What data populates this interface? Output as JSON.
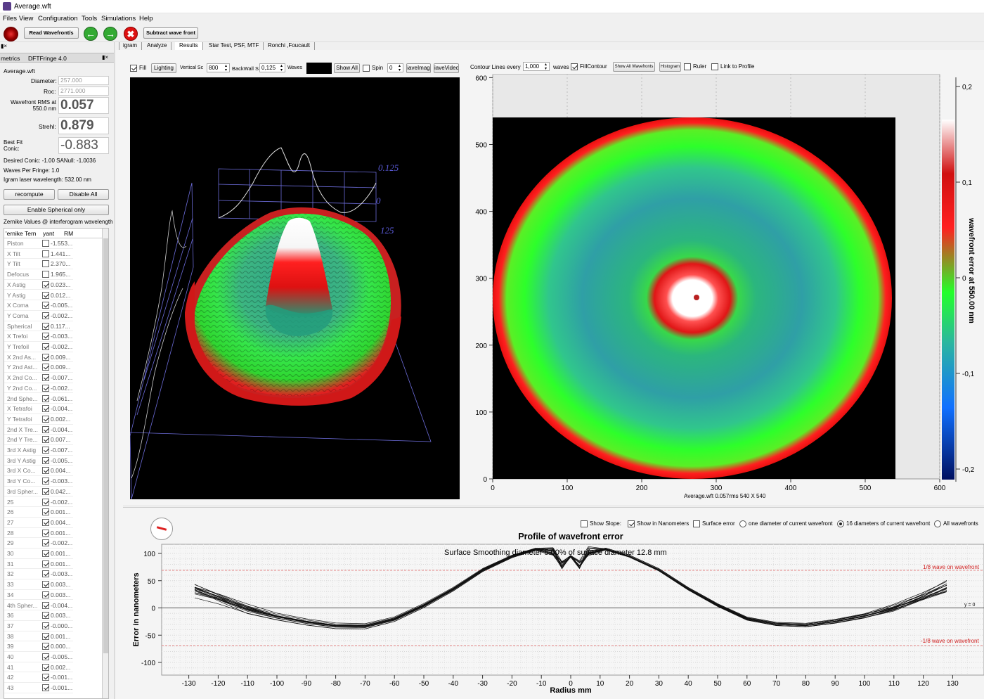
{
  "window_title": "Average.wft",
  "menu": [
    "Files",
    "View",
    "Configuration",
    "Tools",
    "Simulations",
    "Help"
  ],
  "toolbar": {
    "read_label": "Read Wavefront/s",
    "subtract_label": "Subtract wave front"
  },
  "tabs": [
    "igram",
    "Analyze",
    "Results",
    "Star Test, PSF, MTF",
    "Ronchi ,Foucault"
  ],
  "left_panel": {
    "dock_title": "metrics",
    "dock_title2": "DFTFringe 4.0",
    "file": "Average.wft",
    "diameter_label": "Diameter:",
    "diameter": "257.000",
    "roc_label": "Roc:",
    "roc": "2771.000",
    "rms_label": "Wavefront RMS at 550.0 nm",
    "rms": "0.057",
    "strehl_label": "Strehl:",
    "strehl": "0.879",
    "bestfit_label": "Best Fit Conic:",
    "bestfit": "-0.883",
    "desired": "Desired Conic:  -1.00 SANull: -1.0036",
    "waves_per_fringe": "Waves Per Fringe: 1.0",
    "laser": "Igram laser wavelength: 532.00 nm",
    "recompute": "recompute",
    "disable_all": "Disable All",
    "enable_spherical": "Enable Spherical only",
    "zernike_header": "Zernike Values @ interferogram wavelength",
    "col_term": "'ernike Tern",
    "col_variant": "yant",
    "col_rm": "RM",
    "rows": [
      {
        "name": "Piston",
        "on": false,
        "val": "-1.553..."
      },
      {
        "name": "X Tilt",
        "on": false,
        "val": "1.441..."
      },
      {
        "name": "Y Tilt",
        "on": false,
        "val": "2.370..."
      },
      {
        "name": "Defocus",
        "on": false,
        "val": "1.965..."
      },
      {
        "name": "X Astig",
        "on": true,
        "val": "0.023..."
      },
      {
        "name": "Y Astig",
        "on": true,
        "val": "0.012..."
      },
      {
        "name": "X Coma",
        "on": true,
        "val": "-0.005..."
      },
      {
        "name": "Y Coma",
        "on": true,
        "val": "-0.002..."
      },
      {
        "name": "Spherical",
        "on": true,
        "val": "0.117..."
      },
      {
        "name": "X Trefoi",
        "on": true,
        "val": "-0.003..."
      },
      {
        "name": "Y Trefoil",
        "on": true,
        "val": "-0.002..."
      },
      {
        "name": "X 2nd As...",
        "on": true,
        "val": "0.009..."
      },
      {
        "name": "Y 2nd Ast...",
        "on": true,
        "val": "0.009..."
      },
      {
        "name": "X 2nd Co...",
        "on": true,
        "val": "-0.007..."
      },
      {
        "name": "Y 2nd Co...",
        "on": true,
        "val": "-0.002..."
      },
      {
        "name": "2nd Sphe...",
        "on": true,
        "val": "-0.061..."
      },
      {
        "name": "X Tetrafoi",
        "on": true,
        "val": "-0.004..."
      },
      {
        "name": "Y Tetrafoi",
        "on": true,
        "val": "0.002..."
      },
      {
        "name": "2nd X Tre...",
        "on": true,
        "val": "-0.004..."
      },
      {
        "name": "2nd Y Tre...",
        "on": true,
        "val": "0.007..."
      },
      {
        "name": "3rd X Astig",
        "on": true,
        "val": "-0.007..."
      },
      {
        "name": "3rd Y Astig",
        "on": true,
        "val": "-0.005..."
      },
      {
        "name": "3rd X Co...",
        "on": true,
        "val": "0.004..."
      },
      {
        "name": "3rd Y Co...",
        "on": true,
        "val": "-0.003..."
      },
      {
        "name": "3rd Spher...",
        "on": true,
        "val": "0.042..."
      },
      {
        "name": "25",
        "on": true,
        "val": "-0.002..."
      },
      {
        "name": "26",
        "on": true,
        "val": "0.001..."
      },
      {
        "name": "27",
        "on": true,
        "val": "0.004..."
      },
      {
        "name": "28",
        "on": true,
        "val": "0.001..."
      },
      {
        "name": "29",
        "on": true,
        "val": "-0.002..."
      },
      {
        "name": "30",
        "on": true,
        "val": "0.001..."
      },
      {
        "name": "31",
        "on": true,
        "val": "0.001..."
      },
      {
        "name": "32",
        "on": true,
        "val": "-0.003..."
      },
      {
        "name": "33",
        "on": true,
        "val": "0.003..."
      },
      {
        "name": "34",
        "on": true,
        "val": "0.003..."
      },
      {
        "name": "4th Spher...",
        "on": true,
        "val": "-0.004..."
      },
      {
        "name": "36",
        "on": true,
        "val": "0.003..."
      },
      {
        "name": "37",
        "on": true,
        "val": "-0.000..."
      },
      {
        "name": "38",
        "on": true,
        "val": "0.001..."
      },
      {
        "name": "39",
        "on": true,
        "val": "0.000..."
      },
      {
        "name": "40",
        "on": true,
        "val": "-0.005..."
      },
      {
        "name": "41",
        "on": true,
        "val": "0.002..."
      },
      {
        "name": "42",
        "on": true,
        "val": "-0.001..."
      },
      {
        "name": "43",
        "on": true,
        "val": "-0.001..."
      }
    ]
  },
  "view3d": {
    "fill": "Fill",
    "lighting": "Lighting",
    "vertical_scale": "Vertical Sc",
    "vs_value": "800",
    "backwall": "BackWall S",
    "bw_value": "0,125",
    "waves": "Waves",
    "show_all": "Show All",
    "spin": "Spin",
    "spin_value": "0",
    "save_image": "iaveImag",
    "save_video": "iaveVideo",
    "wall_top": "0.125",
    "wall_zero": "0",
    "wall_side": "125"
  },
  "contour": {
    "contour_every": "Contour Lines every",
    "cl_value": "1,000",
    "waves": "waves",
    "fill_contour": "FillContour",
    "show_all_wavefronts": "Show All Wavefronts",
    "histogram": "Histogram",
    "ruler": "Ruler",
    "link_profile": "Link to Profile",
    "footer": "Average.wft  0.057rms 540 X 540",
    "colorbar_title": "wavefront error at 550.00 nm",
    "x_ticks": [
      "0",
      "100",
      "200",
      "300",
      "400",
      "500",
      "600"
    ],
    "y_ticks": [
      "0",
      "100",
      "200",
      "300",
      "400",
      "500",
      "600"
    ],
    "cb_ticks": [
      "0,2",
      "0,1",
      "0",
      "-0,1",
      "-0,2"
    ]
  },
  "profile": {
    "show_slope": "Show Slope:",
    "show_nm": "Show in Nanometers",
    "surface_error": "Surface error",
    "one_diameter": "one diameter of current wavefront",
    "sixteen": "16 diameters of current wavefront",
    "all_wavefronts": "All wavefronts",
    "title": "Profile of wavefront error",
    "smoothing": "Surface Smoothing diameter   5.00% of surface diameter   12.8 mm",
    "ylabel": "Error in nanometers",
    "xlabel": "Radius mm",
    "ref_upper": "1/8 wave on wavefront",
    "ref_lower": "-1/8 wave on wavefront",
    "y0": "y = 0",
    "x_ticks": [
      "-130",
      "-120",
      "-110",
      "-100",
      "-90",
      "-80",
      "-70",
      "-60",
      "-50",
      "-40",
      "-30",
      "-20",
      "-10",
      "0",
      "10",
      "20",
      "30",
      "40",
      "50",
      "60",
      "70",
      "80",
      "90",
      "100",
      "110",
      "120",
      "130"
    ],
    "y_ticks": [
      "100",
      "50",
      "0",
      "-50",
      "-100"
    ]
  },
  "chart_data": {
    "type": "line",
    "title": "Profile of wavefront error",
    "xlabel": "Radius mm",
    "ylabel": "Error in nanometers",
    "xlim": [
      -135,
      135
    ],
    "ylim": [
      -110,
      115
    ],
    "series_count": 16,
    "x": [
      -128,
      -120,
      -110,
      -100,
      -90,
      -80,
      -70,
      -60,
      -50,
      -40,
      -30,
      -20,
      -12,
      -6,
      -3,
      0,
      3,
      6,
      12,
      20,
      30,
      40,
      50,
      60,
      70,
      80,
      90,
      100,
      110,
      120,
      128
    ],
    "values": [
      35,
      20,
      0,
      -15,
      -25,
      -32,
      -33,
      -20,
      5,
      35,
      70,
      95,
      108,
      105,
      78,
      95,
      78,
      105,
      108,
      95,
      70,
      35,
      5,
      -20,
      -30,
      -32,
      -25,
      -15,
      0,
      20,
      38
    ],
    "reference_lines": [
      {
        "y": 69,
        "label": "1/8 wave on wavefront"
      },
      {
        "y": -69,
        "label": "-1/8 wave on wavefront"
      },
      {
        "y": 0,
        "label": "y = 0"
      }
    ]
  }
}
